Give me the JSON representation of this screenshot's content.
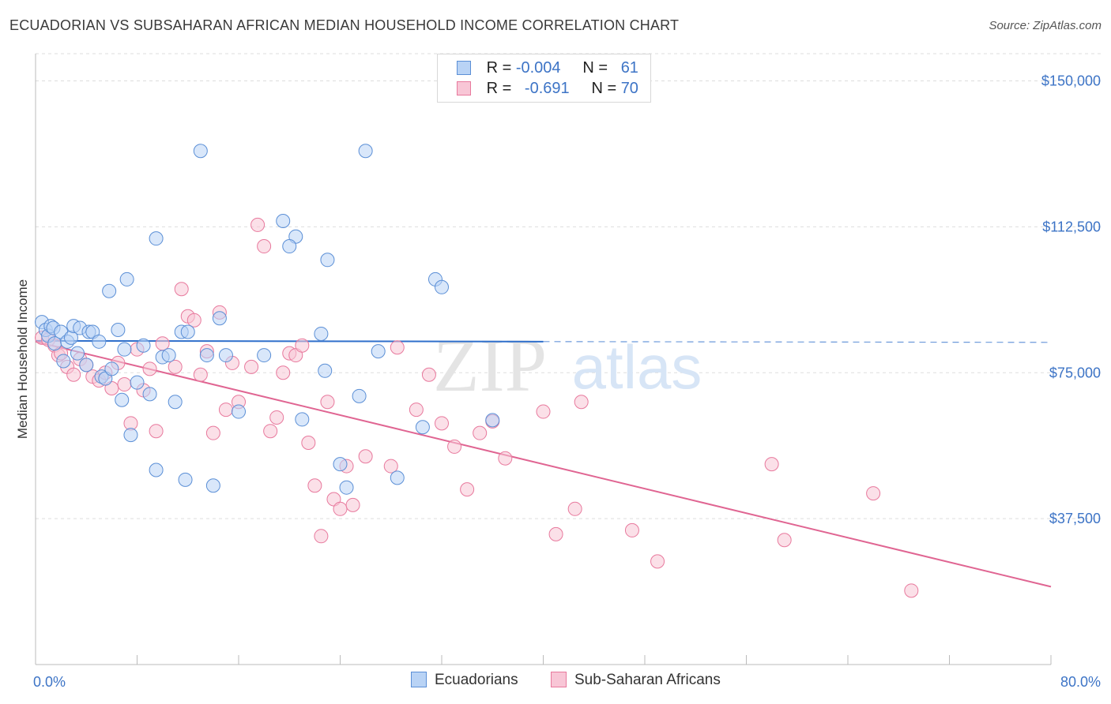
{
  "title": "ECUADORIAN VS SUBSAHARAN AFRICAN MEDIAN HOUSEHOLD INCOME CORRELATION CHART",
  "source": "Source: ZipAtlas.com",
  "watermark": {
    "zip": "ZIP",
    "atlas": "atlas"
  },
  "colors": {
    "blue_fill": "#b9d3f5",
    "blue_stroke": "#5b8fd6",
    "blue_line": "#2f6fcb",
    "pink_fill": "#f8c6d6",
    "pink_stroke": "#e8799d",
    "pink_line": "#e06592",
    "axis_label": "#3d74c6",
    "grid": "#dddddd"
  },
  "legend": {
    "rows": [
      {
        "r_label": "R =",
        "r_value": "-0.004",
        "n_label": "N =",
        "n_value": "61"
      },
      {
        "r_label": "R =",
        "r_value": "-0.691",
        "n_label": "N =",
        "n_value": "70"
      }
    ]
  },
  "chart_data": {
    "type": "scatter",
    "title": "ECUADORIAN VS SUBSAHARAN AFRICAN MEDIAN HOUSEHOLD INCOME CORRELATION CHART",
    "xlabel": "",
    "ylabel": "Median Household Income",
    "xlim": [
      0,
      80
    ],
    "ylim": [
      0,
      157000
    ],
    "x_tick_labels": [
      "0.0%",
      "80.0%"
    ],
    "y_ticks": [
      37500,
      75000,
      112500,
      150000
    ],
    "y_tick_labels": [
      "$37,500",
      "$75,000",
      "$112,500",
      "$150,000"
    ],
    "series": [
      {
        "name": "Ecuadorians",
        "r": -0.004,
        "n": 61,
        "trend": {
          "x": [
            0,
            40
          ],
          "y": [
            83200,
            83000
          ],
          "dashed_extension": [
            40,
            80
          ]
        },
        "points": [
          [
            0.5,
            88000
          ],
          [
            0.8,
            86000
          ],
          [
            1.0,
            84500
          ],
          [
            1.2,
            87000
          ],
          [
            1.4,
            86500
          ],
          [
            1.5,
            82500
          ],
          [
            2.0,
            85500
          ],
          [
            2.2,
            78000
          ],
          [
            2.5,
            83000
          ],
          [
            2.8,
            84000
          ],
          [
            3.0,
            87000
          ],
          [
            3.5,
            86500
          ],
          [
            4.0,
            77000
          ],
          [
            4.2,
            85500
          ],
          [
            4.5,
            85500
          ],
          [
            5.0,
            83000
          ],
          [
            5.2,
            74000
          ],
          [
            5.5,
            73500
          ],
          [
            6.0,
            76000
          ],
          [
            6.5,
            86000
          ],
          [
            6.8,
            68000
          ],
          [
            7.0,
            81000
          ],
          [
            7.5,
            59000
          ],
          [
            8.0,
            72500
          ],
          [
            8.5,
            82000
          ],
          [
            9.0,
            69500
          ],
          [
            9.5,
            50000
          ],
          [
            10.0,
            79000
          ],
          [
            10.5,
            79500
          ],
          [
            11.0,
            67500
          ],
          [
            11.5,
            85500
          ],
          [
            12.0,
            85500
          ],
          [
            13.0,
            132000
          ],
          [
            13.5,
            79500
          ],
          [
            14.0,
            46000
          ],
          [
            14.5,
            89000
          ],
          [
            15.0,
            79500
          ],
          [
            18.0,
            79500
          ],
          [
            19.5,
            114000
          ],
          [
            20.5,
            110000
          ],
          [
            21.0,
            63000
          ],
          [
            22.5,
            85000
          ],
          [
            22.8,
            75500
          ],
          [
            23.0,
            104000
          ],
          [
            24.0,
            51500
          ],
          [
            24.5,
            45500
          ],
          [
            25.5,
            69000
          ],
          [
            26.0,
            132000
          ],
          [
            27.0,
            80500
          ],
          [
            28.5,
            48000
          ],
          [
            30.5,
            61000
          ],
          [
            31.5,
            99000
          ],
          [
            32.0,
            97000
          ],
          [
            9.5,
            109500
          ],
          [
            5.8,
            96000
          ],
          [
            3.3,
            80000
          ],
          [
            11.8,
            47500
          ],
          [
            16.0,
            65000
          ],
          [
            20.0,
            107500
          ],
          [
            7.2,
            99000
          ],
          [
            36.0,
            62800
          ]
        ]
      },
      {
        "name": "Sub-Saharan Africans",
        "r": -0.691,
        "n": 70,
        "trend": {
          "x": [
            0,
            80
          ],
          "y": [
            83000,
            20000
          ]
        },
        "points": [
          [
            0.5,
            84000
          ],
          [
            1.0,
            83500
          ],
          [
            1.5,
            82000
          ],
          [
            1.8,
            79500
          ],
          [
            2.0,
            80000
          ],
          [
            2.5,
            76500
          ],
          [
            3.0,
            74500
          ],
          [
            3.5,
            78500
          ],
          [
            4.0,
            77000
          ],
          [
            4.5,
            74000
          ],
          [
            5.0,
            73000
          ],
          [
            5.5,
            75000
          ],
          [
            6.0,
            71000
          ],
          [
            6.5,
            77500
          ],
          [
            7.0,
            72000
          ],
          [
            7.5,
            62000
          ],
          [
            8.0,
            81000
          ],
          [
            8.5,
            70500
          ],
          [
            9.0,
            76000
          ],
          [
            9.5,
            60000
          ],
          [
            10.0,
            82500
          ],
          [
            11.0,
            76500
          ],
          [
            11.5,
            96500
          ],
          [
            12.0,
            89500
          ],
          [
            12.5,
            88500
          ],
          [
            13.0,
            74500
          ],
          [
            13.5,
            80500
          ],
          [
            14.0,
            59500
          ],
          [
            14.5,
            90500
          ],
          [
            15.0,
            65500
          ],
          [
            15.5,
            77500
          ],
          [
            16.0,
            67500
          ],
          [
            17.0,
            76500
          ],
          [
            17.5,
            113000
          ],
          [
            18.0,
            107500
          ],
          [
            18.5,
            60000
          ],
          [
            19.0,
            63500
          ],
          [
            19.5,
            75000
          ],
          [
            20.0,
            80000
          ],
          [
            20.5,
            79500
          ],
          [
            21.0,
            82000
          ],
          [
            21.5,
            57000
          ],
          [
            22.0,
            46000
          ],
          [
            22.5,
            33000
          ],
          [
            23.0,
            67500
          ],
          [
            23.5,
            42500
          ],
          [
            24.0,
            40000
          ],
          [
            24.5,
            51000
          ],
          [
            25.0,
            41000
          ],
          [
            26.0,
            53500
          ],
          [
            28.0,
            51000
          ],
          [
            30.0,
            65500
          ],
          [
            31.0,
            74500
          ],
          [
            32.0,
            62000
          ],
          [
            33.0,
            56000
          ],
          [
            34.0,
            45000
          ],
          [
            35.0,
            59500
          ],
          [
            36.0,
            62500
          ],
          [
            37.0,
            53000
          ],
          [
            40.0,
            65000
          ],
          [
            41.0,
            33500
          ],
          [
            42.5,
            40000
          ],
          [
            43.0,
            67500
          ],
          [
            47.0,
            34500
          ],
          [
            49.0,
            26500
          ],
          [
            58.0,
            51500
          ],
          [
            59.0,
            32000
          ],
          [
            66.0,
            44000
          ],
          [
            69.0,
            19000
          ],
          [
            28.5,
            81500
          ]
        ]
      }
    ]
  },
  "bottom_legend": [
    {
      "label": "Ecuadorians"
    },
    {
      "label": "Sub-Saharan Africans"
    }
  ]
}
